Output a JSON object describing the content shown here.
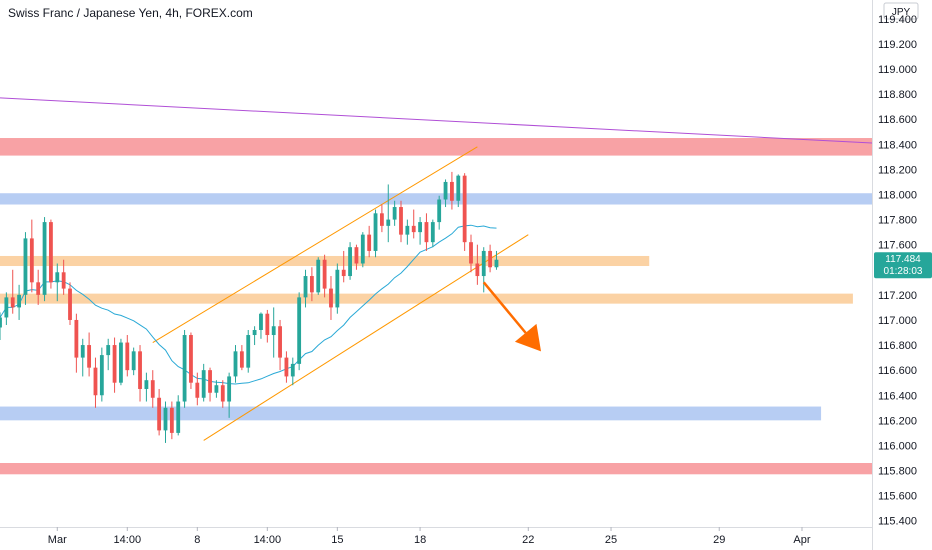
{
  "header": {
    "title": "Swiss Franc / Japanese Yen, 4h, FOREX.com"
  },
  "price_axis": {
    "unit": "JPY",
    "current_price": "117.484",
    "countdown": "01:28:03"
  },
  "colors": {
    "up": "#26a69a",
    "down": "#ef5350",
    "channel": "#ff9800",
    "ma": "#29a9d6",
    "trend": "#b04fd6",
    "zone_red": "#f8a2a5",
    "zone_blue": "#b7cdf3",
    "zone_orange": "#fbd2a4",
    "arrow": "#ff6d00",
    "badge": "#26a69a"
  },
  "chart_data": {
    "type": "candlestick",
    "title": "Swiss Franc / Japanese Yen, 4h, FOREX.com",
    "y_range": [
      115.35,
      119.55
    ],
    "y_ticks": [
      119.4,
      119.2,
      119.0,
      118.8,
      118.6,
      118.4,
      118.2,
      118.0,
      117.8,
      117.6,
      117.2,
      117.0,
      116.8,
      116.6,
      116.4,
      116.2,
      116.0,
      115.8,
      115.6,
      115.4
    ],
    "x_ticks": [
      {
        "label": "Mar",
        "index": 9
      },
      {
        "label": "14:00",
        "index": 20
      },
      {
        "label": "8",
        "index": 31
      },
      {
        "label": "14:00",
        "index": 42
      },
      {
        "label": "15",
        "index": 53
      },
      {
        "label": "18",
        "index": 66
      },
      {
        "label": "22",
        "index": 83
      },
      {
        "label": "25",
        "index": 96
      },
      {
        "label": "29",
        "index": 113
      },
      {
        "label": "Apr",
        "index": 126
      }
    ],
    "index_domain": [
      0,
      137
    ],
    "moving_average_period": 20,
    "candles": [
      [
        116.94,
        117.06,
        116.84,
        117.02
      ],
      [
        117.02,
        117.22,
        116.96,
        117.18
      ],
      [
        117.18,
        117.4,
        117.05,
        117.1
      ],
      [
        117.1,
        117.28,
        117.0,
        117.2
      ],
      [
        117.2,
        117.7,
        117.12,
        117.65
      ],
      [
        117.65,
        117.8,
        117.22,
        117.3
      ],
      [
        117.3,
        117.4,
        117.12,
        117.2
      ],
      [
        117.2,
        117.82,
        117.15,
        117.78
      ],
      [
        117.78,
        117.8,
        117.25,
        117.3
      ],
      [
        117.3,
        117.45,
        117.15,
        117.38
      ],
      [
        117.38,
        117.48,
        117.2,
        117.25
      ],
      [
        117.25,
        117.3,
        116.96,
        117.0
      ],
      [
        117.0,
        117.05,
        116.58,
        116.7
      ],
      [
        116.7,
        116.85,
        116.55,
        116.8
      ],
      [
        116.8,
        116.9,
        116.55,
        116.62
      ],
      [
        116.62,
        116.7,
        116.3,
        116.4
      ],
      [
        116.4,
        116.78,
        116.35,
        116.72
      ],
      [
        116.72,
        116.85,
        116.6,
        116.8
      ],
      [
        116.8,
        116.86,
        116.42,
        116.5
      ],
      [
        116.5,
        116.85,
        116.48,
        116.82
      ],
      [
        116.82,
        116.88,
        116.55,
        116.6
      ],
      [
        116.6,
        116.78,
        116.56,
        116.75
      ],
      [
        116.75,
        116.8,
        116.35,
        116.45
      ],
      [
        116.45,
        116.58,
        116.35,
        116.52
      ],
      [
        116.52,
        116.6,
        116.3,
        116.38
      ],
      [
        116.38,
        116.45,
        116.08,
        116.12
      ],
      [
        116.12,
        116.35,
        116.02,
        116.3
      ],
      [
        116.3,
        116.35,
        116.05,
        116.1
      ],
      [
        116.1,
        116.4,
        116.08,
        116.35
      ],
      [
        116.35,
        116.92,
        116.3,
        116.88
      ],
      [
        116.88,
        116.9,
        116.45,
        116.5
      ],
      [
        116.5,
        116.58,
        116.32,
        116.38
      ],
      [
        116.38,
        116.65,
        116.35,
        116.6
      ],
      [
        116.6,
        116.62,
        116.35,
        116.42
      ],
      [
        116.42,
        116.52,
        116.38,
        116.48
      ],
      [
        116.48,
        116.52,
        116.3,
        116.35
      ],
      [
        116.35,
        116.58,
        116.22,
        116.55
      ],
      [
        116.55,
        116.8,
        116.5,
        116.75
      ],
      [
        116.75,
        116.8,
        116.6,
        116.62
      ],
      [
        116.62,
        116.92,
        116.58,
        116.88
      ],
      [
        116.88,
        116.95,
        116.8,
        116.92
      ],
      [
        116.92,
        117.06,
        116.85,
        117.05
      ],
      [
        117.05,
        117.08,
        116.82,
        116.88
      ],
      [
        116.88,
        117.1,
        116.7,
        116.95
      ],
      [
        116.95,
        117.0,
        116.6,
        116.7
      ],
      [
        116.7,
        116.75,
        116.5,
        116.55
      ],
      [
        116.55,
        116.7,
        116.48,
        116.65
      ],
      [
        116.65,
        117.22,
        116.6,
        117.18
      ],
      [
        117.18,
        117.4,
        117.1,
        117.35
      ],
      [
        117.35,
        117.42,
        117.15,
        117.22
      ],
      [
        117.22,
        117.5,
        117.2,
        117.48
      ],
      [
        117.48,
        117.52,
        117.18,
        117.25
      ],
      [
        117.25,
        117.35,
        117.0,
        117.1
      ],
      [
        117.1,
        117.45,
        117.05,
        117.4
      ],
      [
        117.4,
        117.55,
        117.3,
        117.35
      ],
      [
        117.35,
        117.62,
        117.32,
        117.58
      ],
      [
        117.58,
        117.6,
        117.4,
        117.45
      ],
      [
        117.45,
        117.7,
        117.42,
        117.68
      ],
      [
        117.68,
        117.75,
        117.5,
        117.55
      ],
      [
        117.55,
        117.88,
        117.5,
        117.85
      ],
      [
        117.85,
        117.92,
        117.7,
        117.75
      ],
      [
        117.75,
        118.08,
        117.62,
        117.8
      ],
      [
        117.8,
        117.95,
        117.75,
        117.9
      ],
      [
        117.9,
        117.95,
        117.62,
        117.68
      ],
      [
        117.68,
        117.8,
        117.6,
        117.75
      ],
      [
        117.75,
        117.88,
        117.65,
        117.7
      ],
      [
        117.7,
        117.82,
        117.6,
        117.78
      ],
      [
        117.78,
        117.85,
        117.55,
        117.62
      ],
      [
        117.62,
        117.8,
        117.58,
        117.78
      ],
      [
        117.78,
        117.99,
        117.72,
        117.96
      ],
      [
        117.96,
        118.12,
        117.9,
        118.1
      ],
      [
        118.1,
        118.18,
        117.88,
        117.95
      ],
      [
        117.95,
        118.16,
        117.9,
        118.15
      ],
      [
        118.15,
        118.17,
        117.55,
        117.62
      ],
      [
        117.62,
        117.68,
        117.38,
        117.45
      ],
      [
        117.45,
        117.6,
        117.28,
        117.35
      ],
      [
        117.35,
        117.58,
        117.22,
        117.55
      ],
      [
        117.55,
        117.6,
        117.38,
        117.42
      ],
      [
        117.42,
        117.55,
        117.4,
        117.48
      ]
    ],
    "zones": [
      {
        "color_key": "zone_red",
        "top": 118.45,
        "bottom": 118.31,
        "end_index": 137
      },
      {
        "color_key": "zone_blue",
        "top": 118.01,
        "bottom": 117.92,
        "end_index": 137
      },
      {
        "color_key": "zone_orange",
        "top": 117.51,
        "bottom": 117.43,
        "end_index": 102
      },
      {
        "color_key": "zone_orange",
        "top": 117.21,
        "bottom": 117.13,
        "end_index": 134
      },
      {
        "color_key": "zone_blue",
        "top": 116.31,
        "bottom": 116.2,
        "end_index": 129
      },
      {
        "color_key": "zone_red",
        "top": 115.86,
        "bottom": 115.77,
        "end_index": 137
      }
    ],
    "lines": [
      {
        "color_key": "trend",
        "x1": 0,
        "y1": 118.77,
        "x2": 137,
        "y2": 118.41
      },
      {
        "color_key": "channel",
        "x1": 24,
        "y1": 116.82,
        "x2": 75,
        "y2": 118.38
      },
      {
        "color_key": "channel",
        "x1": 32,
        "y1": 116.04,
        "x2": 83,
        "y2": 117.68
      }
    ],
    "arrow": {
      "color_key": "arrow",
      "from_index": 76,
      "from_value": 117.3,
      "to_index": 85,
      "to_value": 116.75
    }
  }
}
